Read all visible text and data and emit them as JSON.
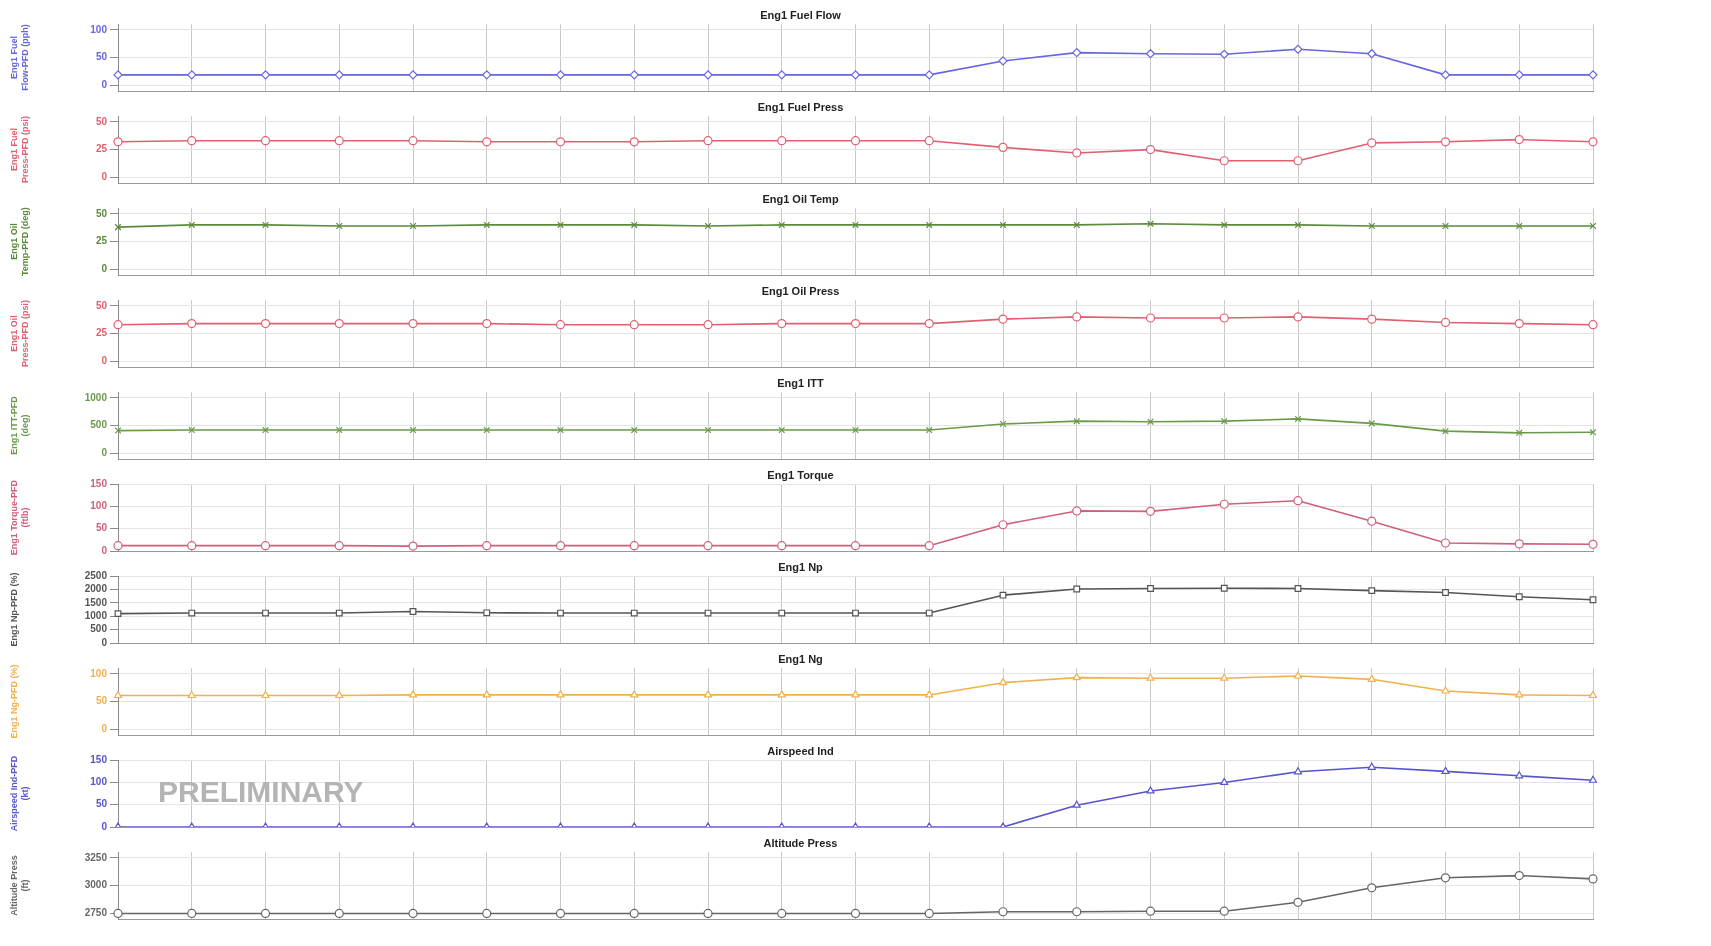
{
  "chart_data": [
    {
      "type": "line",
      "title": "Eng1 Fuel Flow",
      "ylabel": "Eng1 Fuel Flow-PFD (pph)",
      "categories": [
        null,
        null,
        null,
        null,
        null,
        null,
        null,
        null,
        null,
        null,
        null,
        null,
        null,
        null,
        null,
        null,
        null,
        null,
        null,
        null,
        null
      ],
      "ylim": [
        -10,
        110
      ],
      "yticks": [
        0,
        50,
        100
      ],
      "grid": true,
      "tick_labels": "y",
      "series": [
        {
          "color": "#6666dd",
          "marker": "diamond",
          "values": [
            19,
            19,
            19,
            19,
            19,
            19,
            19,
            19,
            19,
            19,
            19,
            19,
            44,
            59,
            57,
            56,
            65,
            57,
            19,
            19,
            19
          ]
        }
      ]
    },
    {
      "type": "line",
      "title": "Eng1 Fuel Press",
      "ylabel": "Eng1 Fuel Press-PFD (psi)",
      "categories": [
        null,
        null,
        null,
        null,
        null,
        null,
        null,
        null,
        null,
        null,
        null,
        null,
        null,
        null,
        null,
        null,
        null,
        null,
        null,
        null,
        null
      ],
      "ylim": [
        -5,
        55
      ],
      "yticks": [
        0,
        25,
        50
      ],
      "grid": true,
      "tick_labels": "y",
      "series": [
        {
          "color": "#e06070",
          "marker": "circle",
          "values": [
            32,
            33,
            33,
            33,
            33,
            32,
            32,
            32,
            33,
            33,
            33,
            33,
            27,
            22,
            25,
            15,
            15,
            31,
            32,
            34,
            32
          ]
        }
      ]
    },
    {
      "type": "line",
      "title": "Eng1 Oil Temp",
      "ylabel": "Eng1 Oil Temp-PFD (deg)",
      "categories": [
        null,
        null,
        null,
        null,
        null,
        null,
        null,
        null,
        null,
        null,
        null,
        null,
        null,
        null,
        null,
        null,
        null,
        null,
        null,
        null,
        null
      ],
      "ylim": [
        -5,
        55
      ],
      "yticks": [
        0,
        25,
        50
      ],
      "grid": true,
      "tick_labels": "y",
      "series": [
        {
          "color": "#5a8a3a",
          "marker": "cross",
          "values": [
            38,
            40,
            40,
            39,
            39,
            40,
            40,
            40,
            39,
            40,
            40,
            40,
            40,
            40,
            41,
            40,
            40,
            39,
            39,
            39,
            39
          ]
        }
      ]
    },
    {
      "type": "line",
      "title": "Eng1 Oil Press",
      "ylabel": "Eng1 Oil Press-PFD (psi)",
      "categories": [
        null,
        null,
        null,
        null,
        null,
        null,
        null,
        null,
        null,
        null,
        null,
        null,
        null,
        null,
        null,
        null,
        null,
        null,
        null,
        null,
        null
      ],
      "ylim": [
        -5,
        55
      ],
      "yticks": [
        0,
        25,
        50
      ],
      "grid": true,
      "tick_labels": "y",
      "series": [
        {
          "color": "#e06070",
          "marker": "circle",
          "values": [
            33,
            34,
            34,
            34,
            34,
            34,
            33,
            33,
            33,
            34,
            34,
            34,
            38,
            40,
            39,
            39,
            40,
            38,
            35,
            34,
            33
          ]
        }
      ]
    },
    {
      "type": "line",
      "title": "Eng1 ITT",
      "ylabel": "Eng1 ITT-PFD (deg)",
      "categories": [
        null,
        null,
        null,
        null,
        null,
        null,
        null,
        null,
        null,
        null,
        null,
        null,
        null,
        null,
        null,
        null,
        null,
        null,
        null,
        null,
        null
      ],
      "ylim": [
        -100,
        1100
      ],
      "yticks": [
        0,
        500,
        1000
      ],
      "grid": true,
      "tick_labels": "y",
      "series": [
        {
          "color": "#6a9a4a",
          "marker": "cross",
          "values": [
            410,
            420,
            420,
            420,
            420,
            420,
            420,
            420,
            420,
            420,
            420,
            420,
            530,
            580,
            570,
            580,
            620,
            540,
            400,
            370,
            380
          ]
        }
      ]
    },
    {
      "type": "line",
      "title": "Eng1 Torque",
      "ylabel": "Eng1 Torque-PFD (ftlb)",
      "categories": [
        null,
        null,
        null,
        null,
        null,
        null,
        null,
        null,
        null,
        null,
        null,
        null,
        null,
        null,
        null,
        null,
        null,
        null,
        null,
        null,
        null
      ],
      "ylim": [
        0,
        150
      ],
      "yticks": [
        0,
        50,
        100,
        150
      ],
      "grid": true,
      "tick_labels": "y",
      "series": [
        {
          "color": "#d0607a",
          "marker": "circle",
          "values": [
            12,
            12,
            12,
            12,
            11,
            12,
            12,
            12,
            12,
            12,
            12,
            12,
            59,
            90,
            89,
            105,
            113,
            67,
            18,
            16,
            15
          ]
        }
      ]
    },
    {
      "type": "line",
      "title": "Eng1 Np",
      "ylabel": "Eng1 Np-PFD (%)",
      "categories": [
        null,
        null,
        null,
        null,
        null,
        null,
        null,
        null,
        null,
        null,
        null,
        null,
        null,
        null,
        null,
        null,
        null,
        null,
        null,
        null,
        null
      ],
      "ylim": [
        0,
        2500
      ],
      "yticks": [
        0,
        500,
        1000,
        1500,
        2000,
        2500
      ],
      "grid": true,
      "tick_labels": "y",
      "series": [
        {
          "color": "#555555",
          "marker": "square",
          "values": [
            1100,
            1120,
            1120,
            1120,
            1180,
            1130,
            1120,
            1120,
            1120,
            1120,
            1120,
            1120,
            1790,
            2020,
            2040,
            2050,
            2040,
            1960,
            1890,
            1730,
            1620
          ]
        }
      ]
    },
    {
      "type": "line",
      "title": "Eng1 Ng",
      "ylabel": "Eng1 Ng-PFD (%)",
      "categories": [
        null,
        null,
        null,
        null,
        null,
        null,
        null,
        null,
        null,
        null,
        null,
        null,
        null,
        null,
        null,
        null,
        null,
        null,
        null,
        null,
        null
      ],
      "ylim": [
        -10,
        110
      ],
      "yticks": [
        0,
        50,
        100
      ],
      "grid": true,
      "tick_labels": "y",
      "series": [
        {
          "color": "#f0b050",
          "marker": "triangle",
          "values": [
            61,
            61,
            61,
            61,
            62,
            62,
            62,
            62,
            62,
            62,
            62,
            62,
            84,
            93,
            92,
            92,
            96,
            90,
            69,
            62,
            61
          ]
        }
      ]
    },
    {
      "type": "line",
      "title": "Airspeed Ind",
      "ylabel": "Airspeed Ind-PFD (kt)",
      "categories": [
        null,
        null,
        null,
        null,
        null,
        null,
        null,
        null,
        null,
        null,
        null,
        null,
        null,
        null,
        null,
        null,
        null,
        null,
        null,
        null,
        null
      ],
      "ylim": [
        0,
        150
      ],
      "yticks": [
        0,
        50,
        100,
        150
      ],
      "grid": true,
      "tick_labels": "y",
      "annotations": [
        "PRELIMINARY"
      ],
      "series": [
        {
          "color": "#5555cc",
          "marker": "triangle",
          "values": [
            0,
            0,
            0,
            0,
            0,
            0,
            0,
            0,
            0,
            0,
            0,
            0,
            0,
            49,
            81,
            100,
            124,
            134,
            125,
            115,
            105
          ]
        }
      ]
    },
    {
      "type": "line",
      "title": "Altitude Press",
      "ylabel": "Altitude Press (ft)",
      "categories": [
        null,
        null,
        null,
        null,
        null,
        null,
        null,
        null,
        null,
        null,
        null,
        null,
        null,
        null,
        null,
        null,
        null,
        null,
        null,
        null,
        null
      ],
      "ylim": [
        2700,
        3300
      ],
      "yticks": [
        2750,
        3000,
        3250
      ],
      "grid": true,
      "tick_labels": "y",
      "series": [
        {
          "color": "#666666",
          "marker": "circle",
          "values": [
            2750,
            2750,
            2750,
            2750,
            2750,
            2750,
            2750,
            2750,
            2750,
            2750,
            2750,
            2750,
            2765,
            2765,
            2770,
            2770,
            2850,
            2980,
            3070,
            3090,
            3060
          ]
        }
      ]
    }
  ]
}
